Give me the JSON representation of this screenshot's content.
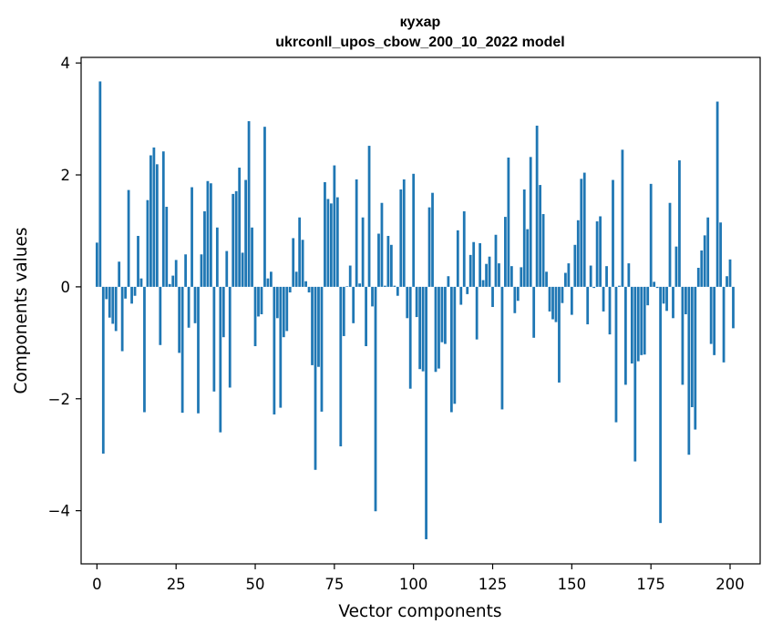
{
  "chart_data": {
    "type": "bar",
    "title": "кухар",
    "subtitle": "ukrconll_upos_cbow_200_10_2022 model",
    "xlabel": "Vector components",
    "ylabel": "Components values",
    "xlim": [
      -5,
      209.5
    ],
    "ylim": [
      -4.95,
      4.1
    ],
    "xticks": [
      0,
      25,
      50,
      75,
      100,
      125,
      150,
      175,
      200
    ],
    "yticks": [
      -4,
      -2,
      0,
      2,
      4
    ],
    "ytick_labels": [
      "−4",
      "−2",
      "0",
      "2",
      "4"
    ],
    "grid": false,
    "color": "#1f77b4",
    "values": [
      0.79,
      3.67,
      -2.98,
      -0.22,
      -0.55,
      -0.66,
      -0.79,
      0.45,
      -1.15,
      -0.21,
      1.73,
      -0.3,
      -0.16,
      0.91,
      0.15,
      -2.24,
      1.55,
      2.35,
      2.49,
      2.19,
      -1.04,
      2.42,
      1.43,
      0.05,
      0.2,
      0.48,
      -1.18,
      -2.25,
      0.58,
      -0.73,
      1.78,
      -0.65,
      -2.26,
      0.58,
      1.35,
      1.89,
      1.85,
      -1.87,
      1.06,
      -2.6,
      -0.9,
      0.64,
      -1.8,
      1.66,
      1.71,
      2.13,
      0.61,
      1.91,
      2.96,
      1.06,
      -1.06,
      -0.53,
      -0.49,
      2.86,
      0.15,
      0.27,
      -2.28,
      -0.56,
      -2.16,
      -0.9,
      -0.79,
      -0.1,
      0.87,
      0.27,
      1.24,
      0.84,
      0.1,
      -0.1,
      -1.4,
      -3.27,
      -1.43,
      -2.23,
      1.87,
      1.57,
      1.49,
      2.17,
      1.6,
      -2.85,
      -0.88,
      0.01,
      0.38,
      -0.65,
      1.92,
      0.06,
      1.24,
      -1.06,
      2.52,
      -0.35,
      -4.01,
      0.95,
      1.5,
      0.02,
      0.91,
      0.75,
      0.02,
      -0.16,
      1.74,
      1.92,
      -0.56,
      -1.82,
      2.02,
      -0.54,
      -1.47,
      -1.51,
      -4.51,
      1.42,
      1.68,
      -1.52,
      -1.46,
      -0.99,
      -1.02,
      0.19,
      -2.24,
      -2.09,
      1.01,
      -0.32,
      1.35,
      -0.13,
      0.57,
      0.8,
      -0.94,
      0.78,
      0.12,
      0.41,
      0.54,
      -0.36,
      0.93,
      0.42,
      -2.19,
      1.25,
      2.31,
      0.37,
      -0.47,
      -0.25,
      0.35,
      1.74,
      1.03,
      2.32,
      -0.91,
      2.88,
      1.82,
      1.3,
      0.27,
      -0.44,
      -0.58,
      -0.63,
      -1.71,
      -0.29,
      0.25,
      0.42,
      -0.5,
      0.75,
      1.19,
      1.93,
      2.04,
      -0.67,
      0.38,
      -0.02,
      1.17,
      1.26,
      -0.44,
      0.37,
      -0.85,
      1.91,
      -2.42,
      0.02,
      2.45,
      -1.75,
      0.42,
      -1.37,
      -3.12,
      -1.33,
      -1.22,
      -1.21,
      -0.33,
      1.84,
      0.09,
      -0.02,
      -4.22,
      -0.3,
      -0.43,
      1.5,
      -0.56,
      0.72,
      2.26,
      -1.75,
      -0.49,
      -3.0,
      -2.15,
      -2.55,
      0.34,
      0.65,
      0.92,
      1.24,
      -1.02,
      -1.22,
      3.31,
      1.15,
      -1.35,
      0.19,
      0.49,
      -0.74
    ]
  }
}
